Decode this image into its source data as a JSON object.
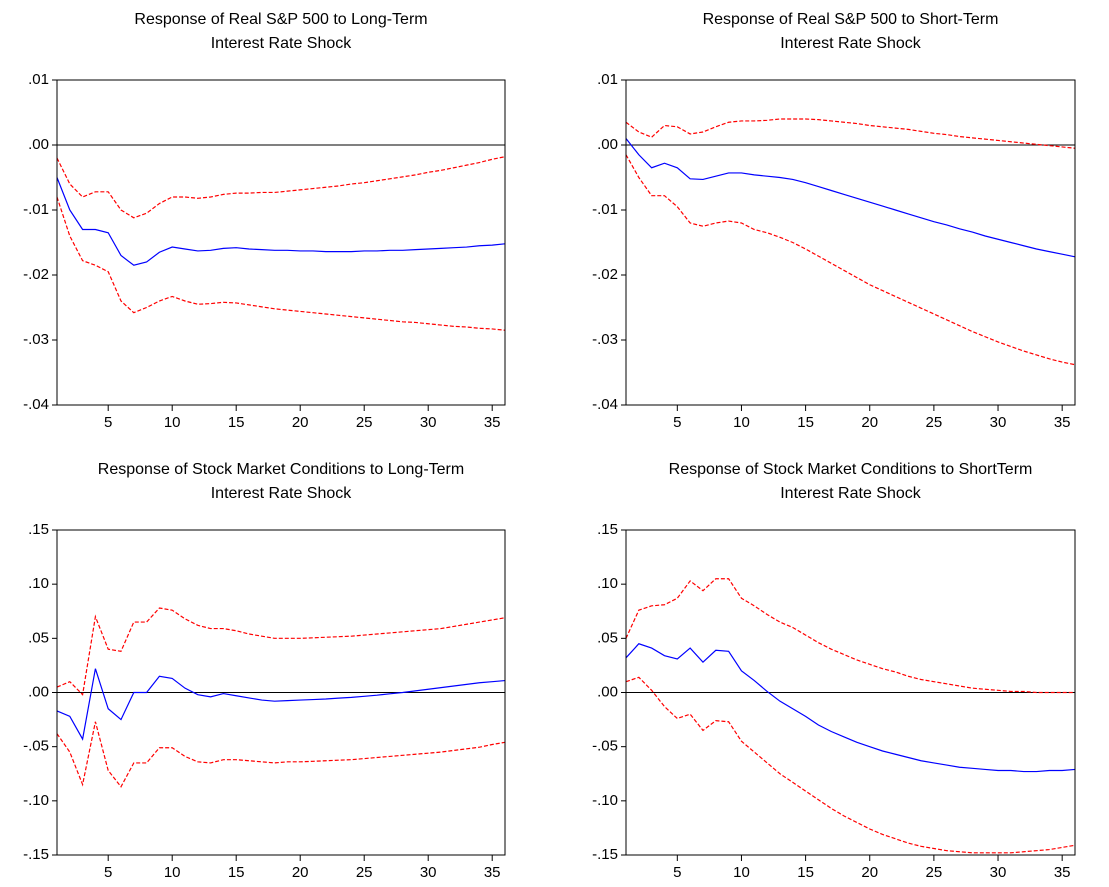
{
  "chart_data": [
    {
      "type": "line",
      "title": [
        "Response of Real S&P 500 to Long-Term",
        "Interest Rate Shock"
      ],
      "x": [
        1,
        2,
        3,
        4,
        5,
        6,
        7,
        8,
        9,
        10,
        11,
        12,
        13,
        14,
        15,
        16,
        17,
        18,
        19,
        20,
        21,
        22,
        23,
        24,
        25,
        26,
        27,
        28,
        29,
        30,
        31,
        32,
        33,
        34,
        35,
        36
      ],
      "xlim": [
        1,
        36
      ],
      "xticks": [
        5,
        10,
        15,
        20,
        25,
        30,
        35
      ],
      "ylim": [
        -0.04,
        0.01
      ],
      "yticks": [
        {
          "value": -0.04,
          "label": "-.04"
        },
        {
          "value": -0.03,
          "label": "-.03"
        },
        {
          "value": -0.02,
          "label": "-.02"
        },
        {
          "value": -0.01,
          "label": "-.01"
        },
        {
          "value": 0,
          "label": ".00"
        },
        {
          "value": 0.01,
          "label": ".01"
        }
      ],
      "zero_line": true,
      "series": [
        {
          "color": "#0000ff",
          "dashed": false,
          "values": [
            -0.005,
            -0.01,
            -0.013,
            -0.013,
            -0.0135,
            -0.017,
            -0.0185,
            -0.018,
            -0.0165,
            -0.0157,
            -0.016,
            -0.0163,
            -0.0162,
            -0.0159,
            -0.0158,
            -0.016,
            -0.0161,
            -0.0162,
            -0.0162,
            -0.0163,
            -0.0163,
            -0.0164,
            -0.0164,
            -0.0164,
            -0.0163,
            -0.0163,
            -0.0162,
            -0.0162,
            -0.0161,
            -0.016,
            -0.0159,
            -0.0158,
            -0.0157,
            -0.0155,
            -0.0154,
            -0.0152
          ]
        },
        {
          "color": "#ff0000",
          "dashed": true,
          "values": [
            -0.002,
            -0.006,
            -0.008,
            -0.0072,
            -0.0072,
            -0.01,
            -0.0112,
            -0.0105,
            -0.009,
            -0.008,
            -0.008,
            -0.0082,
            -0.008,
            -0.0076,
            -0.0074,
            -0.0074,
            -0.0073,
            -0.0073,
            -0.0071,
            -0.0069,
            -0.0067,
            -0.0065,
            -0.0063,
            -0.006,
            -0.0058,
            -0.0055,
            -0.0052,
            -0.0049,
            -0.0046,
            -0.0042,
            -0.0039,
            -0.0035,
            -0.0031,
            -0.0027,
            -0.0022,
            -0.0018
          ]
        },
        {
          "color": "#ff0000",
          "dashed": true,
          "values": [
            -0.008,
            -0.014,
            -0.0178,
            -0.0185,
            -0.0195,
            -0.024,
            -0.0258,
            -0.025,
            -0.024,
            -0.0233,
            -0.024,
            -0.0245,
            -0.0244,
            -0.0242,
            -0.0243,
            -0.0246,
            -0.0249,
            -0.0252,
            -0.0254,
            -0.0256,
            -0.0258,
            -0.026,
            -0.0262,
            -0.0264,
            -0.0266,
            -0.0268,
            -0.027,
            -0.0272,
            -0.0273,
            -0.0275,
            -0.0277,
            -0.0279,
            -0.028,
            -0.0282,
            -0.0283,
            -0.0285
          ]
        }
      ]
    },
    {
      "type": "line",
      "title": [
        "Response of Real S&P 500 to Short-Term",
        "Interest Rate Shock"
      ],
      "x": [
        1,
        2,
        3,
        4,
        5,
        6,
        7,
        8,
        9,
        10,
        11,
        12,
        13,
        14,
        15,
        16,
        17,
        18,
        19,
        20,
        21,
        22,
        23,
        24,
        25,
        26,
        27,
        28,
        29,
        30,
        31,
        32,
        33,
        34,
        35,
        36
      ],
      "xlim": [
        1,
        36
      ],
      "xticks": [
        5,
        10,
        15,
        20,
        25,
        30,
        35
      ],
      "ylim": [
        -0.04,
        0.01
      ],
      "yticks": [
        {
          "value": -0.04,
          "label": "-.04"
        },
        {
          "value": -0.03,
          "label": "-.03"
        },
        {
          "value": -0.02,
          "label": "-.02"
        },
        {
          "value": -0.01,
          "label": "-.01"
        },
        {
          "value": 0,
          "label": ".00"
        },
        {
          "value": 0.01,
          "label": ".01"
        }
      ],
      "zero_line": true,
      "series": [
        {
          "color": "#0000ff",
          "dashed": false,
          "values": [
            0.001,
            -0.0015,
            -0.0035,
            -0.0028,
            -0.0035,
            -0.0052,
            -0.0053,
            -0.0048,
            -0.0043,
            -0.0043,
            -0.0046,
            -0.0048,
            -0.005,
            -0.0053,
            -0.0058,
            -0.0064,
            -0.007,
            -0.0076,
            -0.0082,
            -0.0088,
            -0.0094,
            -0.01,
            -0.0106,
            -0.0112,
            -0.0118,
            -0.0123,
            -0.0129,
            -0.0134,
            -0.014,
            -0.0145,
            -0.015,
            -0.0155,
            -0.016,
            -0.0164,
            -0.0168,
            -0.0172
          ]
        },
        {
          "color": "#ff0000",
          "dashed": true,
          "values": [
            0.0035,
            0.002,
            0.0012,
            0.003,
            0.0028,
            0.0017,
            0.002,
            0.0028,
            0.0035,
            0.0037,
            0.0037,
            0.0038,
            0.004,
            0.004,
            0.004,
            0.0039,
            0.0037,
            0.0035,
            0.0033,
            0.003,
            0.0028,
            0.0026,
            0.0024,
            0.0021,
            0.0018,
            0.0016,
            0.0013,
            0.0011,
            0.0009,
            0.0007,
            0.0005,
            0.0003,
            0.0001,
            -0.0001,
            -0.0003,
            -0.0005
          ]
        },
        {
          "color": "#ff0000",
          "dashed": true,
          "values": [
            -0.0015,
            -0.005,
            -0.0078,
            -0.0078,
            -0.0095,
            -0.012,
            -0.0125,
            -0.012,
            -0.0117,
            -0.012,
            -0.013,
            -0.0135,
            -0.0142,
            -0.015,
            -0.016,
            -0.0171,
            -0.0182,
            -0.0193,
            -0.0204,
            -0.0215,
            -0.0224,
            -0.0233,
            -0.0242,
            -0.0251,
            -0.026,
            -0.0269,
            -0.0278,
            -0.0287,
            -0.0295,
            -0.0303,
            -0.031,
            -0.0317,
            -0.0323,
            -0.0329,
            -0.0334,
            -0.0338
          ]
        }
      ]
    },
    {
      "type": "line",
      "title": [
        "Response of Stock Market Conditions to Long-Term",
        "Interest Rate Shock"
      ],
      "x": [
        1,
        2,
        3,
        4,
        5,
        6,
        7,
        8,
        9,
        10,
        11,
        12,
        13,
        14,
        15,
        16,
        17,
        18,
        19,
        20,
        21,
        22,
        23,
        24,
        25,
        26,
        27,
        28,
        29,
        30,
        31,
        32,
        33,
        34,
        35,
        36
      ],
      "xlim": [
        1,
        36
      ],
      "xticks": [
        5,
        10,
        15,
        20,
        25,
        30,
        35
      ],
      "ylim": [
        -0.15,
        0.15
      ],
      "yticks": [
        {
          "value": -0.15,
          "label": "-.15"
        },
        {
          "value": -0.1,
          "label": "-.10"
        },
        {
          "value": -0.05,
          "label": "-.05"
        },
        {
          "value": 0,
          "label": ".00"
        },
        {
          "value": 0.05,
          "label": ".05"
        },
        {
          "value": 0.1,
          "label": ".10"
        },
        {
          "value": 0.15,
          "label": ".15"
        }
      ],
      "zero_line": true,
      "series": [
        {
          "color": "#0000ff",
          "dashed": false,
          "values": [
            -0.017,
            -0.022,
            -0.043,
            0.022,
            -0.015,
            -0.025,
            0.0,
            0.0,
            0.015,
            0.013,
            0.004,
            -0.002,
            -0.004,
            -0.001,
            -0.003,
            -0.005,
            -0.007,
            -0.008,
            -0.0075,
            -0.007,
            -0.0065,
            -0.006,
            -0.0052,
            -0.0045,
            -0.0035,
            -0.0025,
            -0.0012,
            0.0,
            0.0015,
            0.003,
            0.0045,
            0.006,
            0.0075,
            0.009,
            0.01,
            0.011
          ]
        },
        {
          "color": "#ff0000",
          "dashed": true,
          "values": [
            0.005,
            0.01,
            -0.002,
            0.07,
            0.04,
            0.038,
            0.065,
            0.065,
            0.078,
            0.076,
            0.068,
            0.062,
            0.059,
            0.059,
            0.057,
            0.054,
            0.052,
            0.05,
            0.05,
            0.05,
            0.0505,
            0.051,
            0.0515,
            0.052,
            0.053,
            0.054,
            0.055,
            0.056,
            0.057,
            0.058,
            0.059,
            0.061,
            0.063,
            0.065,
            0.067,
            0.069
          ]
        },
        {
          "color": "#ff0000",
          "dashed": true,
          "values": [
            -0.038,
            -0.055,
            -0.085,
            -0.027,
            -0.072,
            -0.087,
            -0.065,
            -0.065,
            -0.051,
            -0.051,
            -0.059,
            -0.064,
            -0.065,
            -0.062,
            -0.062,
            -0.063,
            -0.064,
            -0.065,
            -0.064,
            -0.064,
            -0.0635,
            -0.063,
            -0.0625,
            -0.062,
            -0.061,
            -0.06,
            -0.059,
            -0.058,
            -0.057,
            -0.056,
            -0.055,
            -0.0535,
            -0.052,
            -0.0505,
            -0.048,
            -0.046
          ]
        }
      ]
    },
    {
      "type": "line",
      "title": [
        "Response of Stock Market Conditions to ShortTerm",
        "Interest Rate Shock"
      ],
      "x": [
        1,
        2,
        3,
        4,
        5,
        6,
        7,
        8,
        9,
        10,
        11,
        12,
        13,
        14,
        15,
        16,
        17,
        18,
        19,
        20,
        21,
        22,
        23,
        24,
        25,
        26,
        27,
        28,
        29,
        30,
        31,
        32,
        33,
        34,
        35,
        36
      ],
      "xlim": [
        1,
        36
      ],
      "xticks": [
        5,
        10,
        15,
        20,
        25,
        30,
        35
      ],
      "ylim": [
        -0.15,
        0.15
      ],
      "yticks": [
        {
          "value": -0.15,
          "label": "-.15"
        },
        {
          "value": -0.1,
          "label": "-.10"
        },
        {
          "value": -0.05,
          "label": "-.05"
        },
        {
          "value": 0,
          "label": ".00"
        },
        {
          "value": 0.05,
          "label": ".05"
        },
        {
          "value": 0.1,
          "label": ".10"
        },
        {
          "value": 0.15,
          "label": ".15"
        }
      ],
      "zero_line": true,
      "series": [
        {
          "color": "#0000ff",
          "dashed": false,
          "values": [
            0.032,
            0.045,
            0.041,
            0.034,
            0.031,
            0.041,
            0.028,
            0.039,
            0.038,
            0.02,
            0.011,
            0.001,
            -0.008,
            -0.015,
            -0.022,
            -0.03,
            -0.036,
            -0.041,
            -0.046,
            -0.05,
            -0.054,
            -0.057,
            -0.06,
            -0.063,
            -0.065,
            -0.067,
            -0.069,
            -0.07,
            -0.071,
            -0.072,
            -0.072,
            -0.073,
            -0.073,
            -0.072,
            -0.072,
            -0.071
          ]
        },
        {
          "color": "#ff0000",
          "dashed": true,
          "values": [
            0.05,
            0.076,
            0.08,
            0.081,
            0.087,
            0.103,
            0.094,
            0.105,
            0.105,
            0.087,
            0.08,
            0.072,
            0.065,
            0.06,
            0.053,
            0.046,
            0.04,
            0.035,
            0.03,
            0.026,
            0.022,
            0.019,
            0.015,
            0.012,
            0.01,
            0.008,
            0.006,
            0.004,
            0.003,
            0.002,
            0.001,
            0.001,
            0.0,
            0.0,
            0.0,
            0.0
          ]
        },
        {
          "color": "#ff0000",
          "dashed": true,
          "values": [
            0.01,
            0.014,
            0.002,
            -0.013,
            -0.024,
            -0.02,
            -0.035,
            -0.026,
            -0.027,
            -0.045,
            -0.055,
            -0.065,
            -0.075,
            -0.083,
            -0.091,
            -0.099,
            -0.107,
            -0.114,
            -0.12,
            -0.126,
            -0.131,
            -0.135,
            -0.139,
            -0.142,
            -0.144,
            -0.146,
            -0.147,
            -0.148,
            -0.148,
            -0.148,
            -0.148,
            -0.147,
            -0.146,
            -0.145,
            -0.143,
            -0.141
          ]
        }
      ]
    }
  ]
}
